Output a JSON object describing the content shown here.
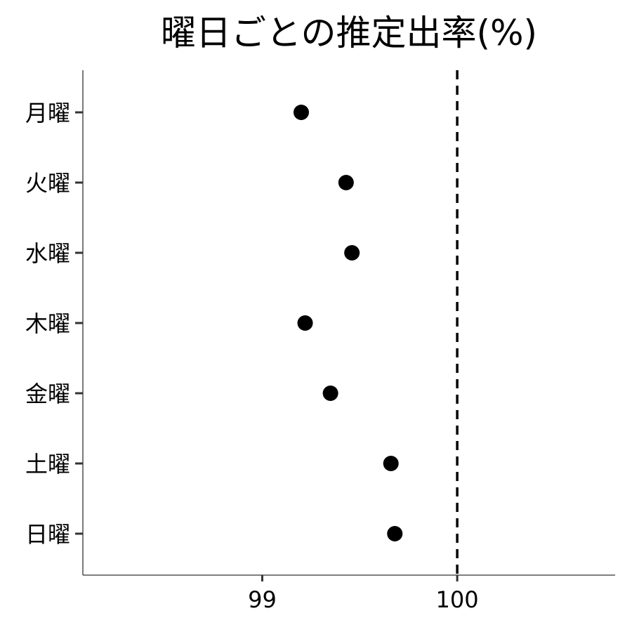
{
  "chart_data": {
    "type": "scatter",
    "title": "曜日ごとの推定出率(%)",
    "xlabel": "",
    "ylabel": "",
    "categories": [
      "月曜",
      "火曜",
      "水曜",
      "木曜",
      "金曜",
      "土曜",
      "日曜"
    ],
    "x": [
      99.2,
      99.43,
      99.46,
      99.22,
      99.35,
      99.66,
      99.68
    ],
    "xlim": [
      98.08,
      100.81
    ],
    "xticks": [
      99,
      100
    ],
    "xtick_labels": [
      "99",
      "100"
    ],
    "reference_line": {
      "x": 100,
      "style": "dashed"
    },
    "grid": false,
    "legend": "none",
    "point_color": "#000000"
  }
}
